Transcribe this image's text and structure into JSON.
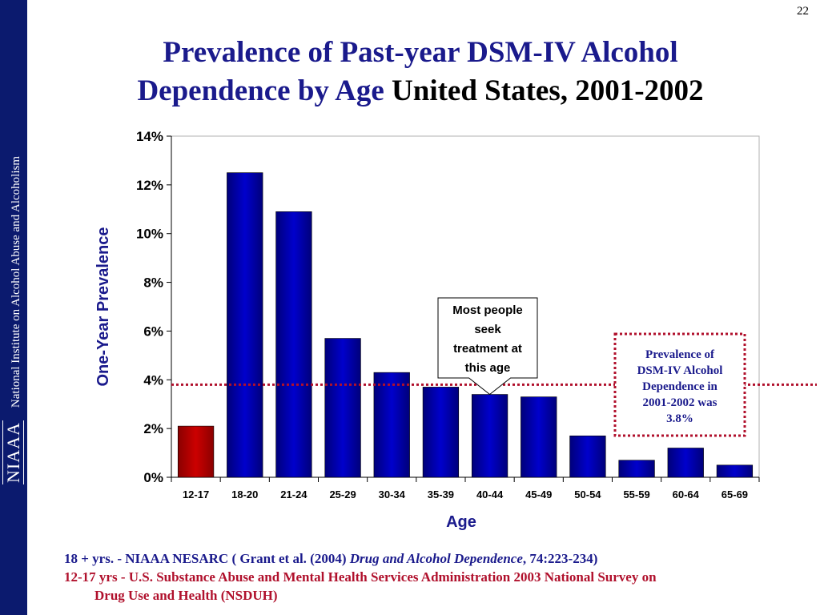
{
  "slide_number": "22",
  "sidebar": {
    "logo_text": "NIAAA",
    "org_name": "National Institute on Alcohol Abuse and Alcoholism"
  },
  "title": {
    "part1_line1": "Prevalence of Past-year DSM-IV Alcohol",
    "part1_line2": "Dependence by Age",
    "part2": "United States, 2001-2002"
  },
  "chart_data": {
    "type": "bar",
    "title": "",
    "xlabel": "Age",
    "ylabel": "One-Year Prevalence",
    "categories": [
      "12-17",
      "18-20",
      "21-24",
      "25-29",
      "30-34",
      "35-39",
      "40-44",
      "45-49",
      "50-54",
      "55-59",
      "60-64",
      "65-69"
    ],
    "values": [
      2.1,
      12.5,
      10.9,
      5.7,
      4.3,
      3.7,
      3.4,
      3.3,
      1.7,
      0.7,
      1.2,
      0.5
    ],
    "ylim": [
      0,
      14
    ],
    "yticks": [
      0,
      2,
      4,
      6,
      8,
      10,
      12,
      14
    ],
    "ytick_labels": [
      "0%",
      "2%",
      "4%",
      "6%",
      "8%",
      "10%",
      "12%",
      "14%"
    ],
    "reference_line": {
      "value": 3.8,
      "color": "#b0102c"
    },
    "colors": {
      "default_bar": "#0000cc",
      "highlight_bar": "#cc0000",
      "highlight_category": "12-17"
    },
    "grid": false,
    "callout": {
      "lines": [
        "Most people",
        "seek",
        "treatment at",
        "this age"
      ],
      "points_to": "40-44"
    },
    "annotation_box": {
      "lines": [
        "Prevalence of",
        "DSM-IV Alcohol",
        "Dependence in",
        "2001-2002 was",
        "3.8%"
      ]
    }
  },
  "footnotes": {
    "line1_prefix": "18 + yrs. - NIAAA NESARC ( Grant et al. (2004) ",
    "line1_journal": "Drug and Alcohol Dependence",
    "line1_suffix": ", 74:223-234)",
    "line2a": "12-17 yrs - U.S. Substance  Abuse and Mental Health Services Administration 2003 National Survey on",
    "line2b": "Drug Use and Health (NSDUH)"
  }
}
